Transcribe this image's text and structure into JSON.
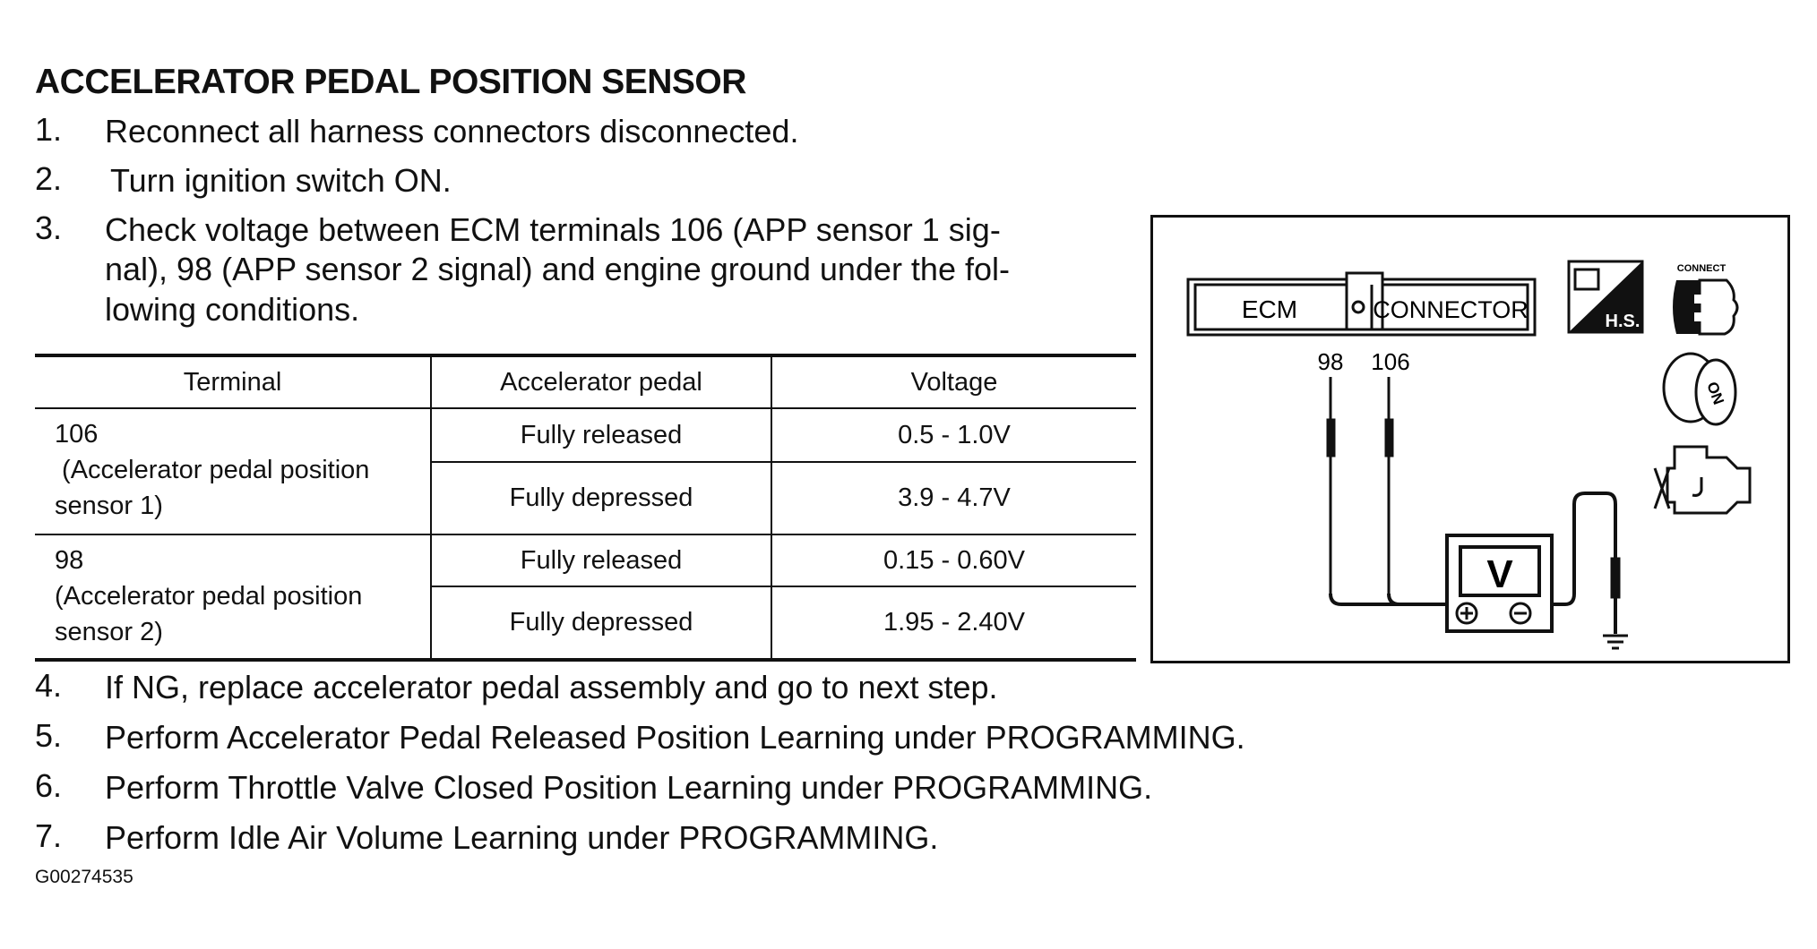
{
  "title": "ACCELERATOR PEDAL POSITION SENSOR",
  "steps_before": [
    {
      "num": "1.",
      "text": "Reconnect all harness connectors disconnected."
    },
    {
      "num": "2.",
      "text": "Turn ignition switch ON."
    },
    {
      "num": "3.",
      "lines": [
        "Check voltage between ECM terminals 106 (APP sensor 1 sig-",
        "nal), 98 (APP sensor 2 signal) and engine ground under the fol-",
        "lowing conditions."
      ]
    }
  ],
  "table": {
    "headers": [
      "Terminal",
      "Accelerator pedal",
      "Voltage"
    ],
    "groups": [
      {
        "terminal": [
          "106",
          " (Accelerator pedal position",
          "sensor 1)"
        ],
        "rows": [
          {
            "pedal": "Fully released",
            "voltage": "0.5 - 1.0V"
          },
          {
            "pedal": "Fully depressed",
            "voltage": "3.9 - 4.7V"
          }
        ]
      },
      {
        "terminal": [
          "98",
          "(Accelerator pedal position",
          "sensor 2)"
        ],
        "rows": [
          {
            "pedal": "Fully released",
            "voltage": "0.15 - 0.60V"
          },
          {
            "pedal": "Fully depressed",
            "voltage": "1.95 - 2.40V"
          }
        ]
      }
    ]
  },
  "steps_after": [
    {
      "num": "4.",
      "text": "If NG, replace accelerator pedal assembly and go to next step."
    },
    {
      "num": "5.",
      "text": "Perform Accelerator Pedal Released Position Learning under PROGRAMMING."
    },
    {
      "num": "6.",
      "text": "Perform Throttle Valve Closed Position Learning under PROGRAMMING."
    },
    {
      "num": "7.",
      "text": "Perform Idle Air Volume Learning under PROGRAMMING."
    }
  ],
  "figure_id": "G00274535",
  "diagram": {
    "ecm_label": "ECM",
    "connector_label": "CONNECTOR",
    "terminal_a": "98",
    "terminal_b": "106",
    "meter_label": "V",
    "hs_label": "H.S.",
    "connect_label": "CONNECT",
    "on_label": "ON",
    "icons": [
      "harness-connector-icon",
      "connect-icon",
      "ignition-key-on-icon",
      "engine-stopped-icon",
      "ground-icon",
      "voltmeter-icon"
    ]
  }
}
